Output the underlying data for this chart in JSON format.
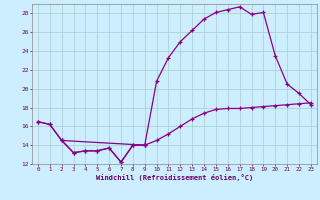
{
  "xlabel": "Windchill (Refroidissement éolien,°C)",
  "bg_color": "#cceeff",
  "grid_color": "#aacccc",
  "line_color": "#880088",
  "xlim": [
    -0.5,
    23.5
  ],
  "ylim": [
    12,
    29
  ],
  "xticks": [
    0,
    1,
    2,
    3,
    4,
    5,
    6,
    7,
    8,
    9,
    10,
    11,
    12,
    13,
    14,
    15,
    16,
    17,
    18,
    19,
    20,
    21,
    22,
    23
  ],
  "yticks": [
    12,
    14,
    16,
    18,
    20,
    22,
    24,
    26,
    28
  ],
  "line1_x": [
    0,
    1,
    2,
    9,
    10,
    11,
    12,
    13,
    14,
    15,
    16,
    17,
    18,
    19,
    20,
    21,
    22,
    23
  ],
  "line1_y": [
    16.5,
    16.2,
    14.5,
    14.0,
    20.8,
    23.3,
    25.0,
    26.2,
    27.4,
    28.1,
    28.4,
    28.7,
    27.9,
    28.1,
    23.5,
    20.5,
    19.5,
    18.3
  ],
  "line2_x": [
    0,
    1,
    2,
    3,
    4,
    5,
    6,
    7,
    8,
    9,
    10,
    11,
    12,
    13,
    14,
    15,
    16,
    17,
    18,
    19,
    20,
    21,
    22,
    23
  ],
  "line2_y": [
    16.5,
    16.2,
    14.5,
    13.2,
    13.4,
    13.4,
    13.7,
    12.2,
    14.0,
    14.0,
    14.5,
    15.2,
    16.0,
    16.8,
    17.4,
    17.8,
    17.9,
    17.9,
    18.0,
    18.1,
    18.2,
    18.3,
    18.4,
    18.5
  ],
  "line3_x": [
    2,
    3,
    4,
    5,
    6,
    7,
    8,
    9
  ],
  "line3_y": [
    14.5,
    13.2,
    13.4,
    13.4,
    13.7,
    12.2,
    14.0,
    14.0
  ]
}
